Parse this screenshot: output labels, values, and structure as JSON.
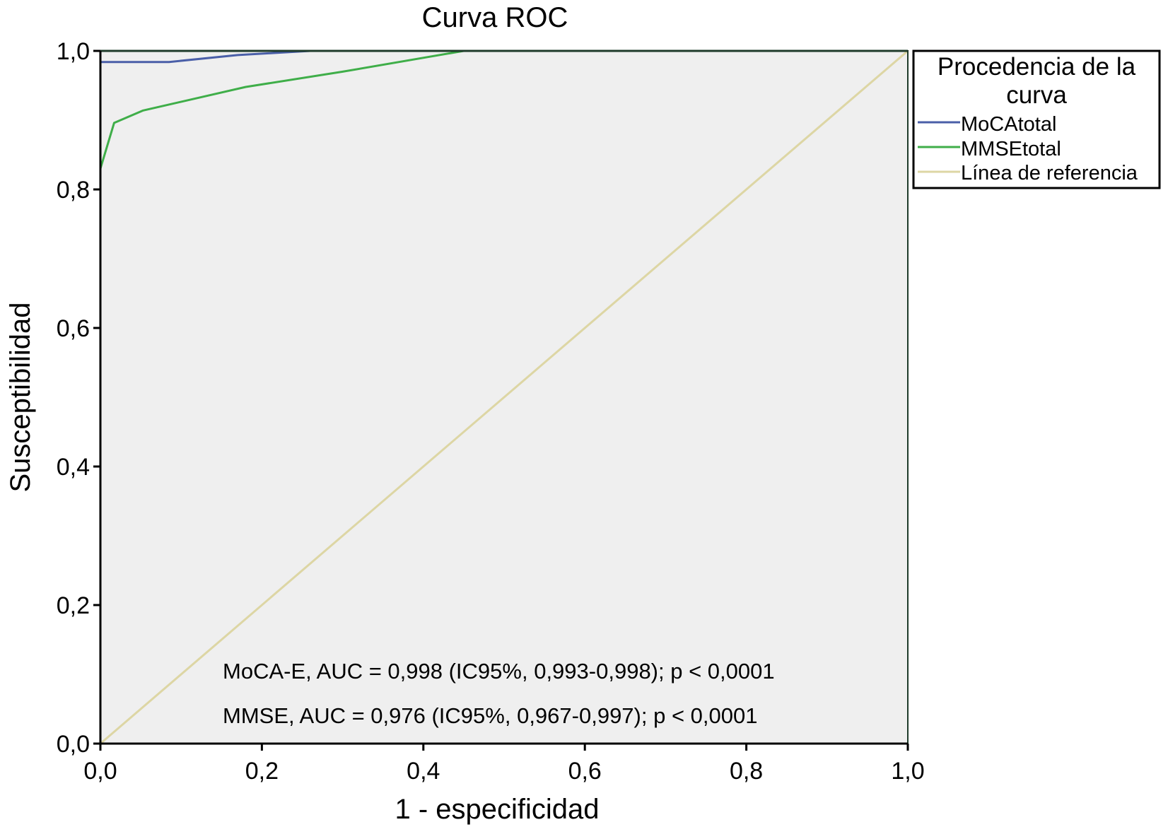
{
  "chart_data": {
    "type": "line",
    "title": "Curva ROC",
    "xlabel": "1 - especificidad",
    "ylabel": "Susceptibilidad",
    "xlim": [
      0,
      1
    ],
    "ylim": [
      0,
      1
    ],
    "x_ticks": [
      0,
      0.2,
      0.4,
      0.6,
      0.8,
      1.0
    ],
    "y_ticks": [
      0,
      0.2,
      0.4,
      0.6,
      0.8,
      1.0
    ],
    "x_tick_labels": [
      "0,0",
      "0,2",
      "0,4",
      "0,6",
      "0,8",
      "1,0"
    ],
    "y_tick_labels": [
      "0,0",
      "0,2",
      "0,4",
      "0,6",
      "0,8",
      "1,0"
    ],
    "grid": false,
    "plot_background": "#efefef",
    "legend": {
      "title_line1": "Procedencia de la",
      "title_line2": "curva",
      "position": "right",
      "entries": [
        "MoCAtotal",
        "MMSEtotal",
        "Línea de referencia"
      ]
    },
    "series": [
      {
        "name": "MoCAtotal",
        "color": "#4a5fa8",
        "x": [
          0,
          0,
          0,
          0.085,
          0.17,
          0.26,
          0.5,
          1.0
        ],
        "y": [
          0,
          0.88,
          0.984,
          0.984,
          0.994,
          1.0,
          1.0,
          1.0
        ]
      },
      {
        "name": "MMSEtotal",
        "color": "#3fae49",
        "x": [
          0,
          0,
          0.017,
          0.053,
          0.18,
          0.3,
          0.45,
          1.0
        ],
        "y": [
          0,
          0.83,
          0.896,
          0.914,
          0.948,
          0.97,
          1.0,
          1.0
        ]
      },
      {
        "name": "Línea de referencia",
        "color": "#ddd6a4",
        "x": [
          0,
          1
        ],
        "y": [
          0,
          1
        ]
      }
    ],
    "annotations": [
      "MoCA-E, AUC = 0,998 (IC95%, 0,993-0,998); p < 0,0001",
      "MMSE, AUC = 0,976 (IC95%, 0,967-0,997); p < 0,0001"
    ]
  }
}
